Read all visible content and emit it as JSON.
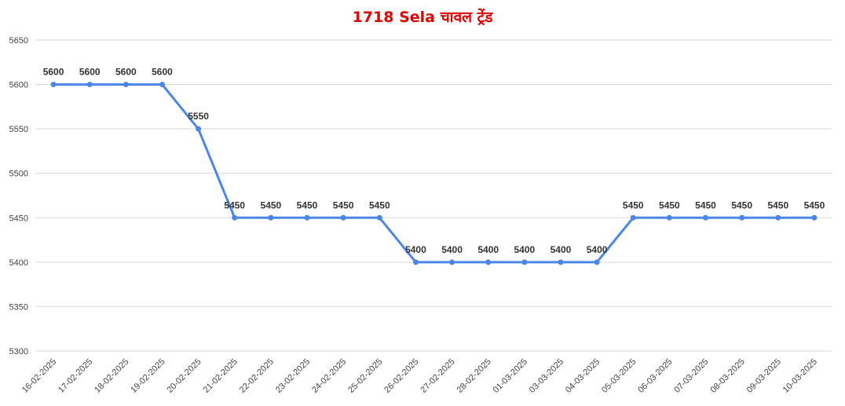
{
  "chart_data": {
    "type": "line",
    "title": "1718 Sela चावल ट्रेंड",
    "x": [
      "16-02-2025",
      "17-02-2025",
      "18-02-2025",
      "19-02-2025",
      "20-02-2025",
      "21-02-2025",
      "22-02-2025",
      "23-02-2025",
      "24-02-2025",
      "25-02-2025",
      "26-02-2025",
      "27-02-2025",
      "28-02-2025",
      "01-03-2025",
      "03-03-2025",
      "04-03-2025",
      "05-03-2025",
      "06-03-2025",
      "07-03-2025",
      "08-03-2025",
      "09-03-2025",
      "10-03-2025"
    ],
    "values": [
      5600,
      5600,
      5600,
      5600,
      5550,
      5450,
      5450,
      5450,
      5450,
      5450,
      5400,
      5400,
      5400,
      5400,
      5400,
      5400,
      5450,
      5450,
      5450,
      5450,
      5450,
      5450
    ],
    "color": "#4a86e8",
    "ylim": [
      5300,
      5650
    ],
    "yticks": [
      5300,
      5350,
      5400,
      5450,
      5500,
      5550,
      5600,
      5650
    ],
    "grid": true
  }
}
